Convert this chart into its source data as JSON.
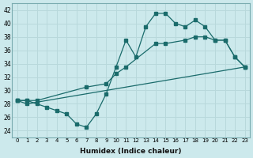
{
  "xlabel": "Humidex (Indice chaleur)",
  "bg_color": "#cce9ec",
  "line_color": "#1a6b6b",
  "grid_color": "#b8d8db",
  "xlim": [
    -0.5,
    23.5
  ],
  "ylim": [
    23,
    43
  ],
  "yticks": [
    24,
    26,
    28,
    30,
    32,
    34,
    36,
    38,
    40,
    42
  ],
  "xticks": [
    0,
    1,
    2,
    3,
    4,
    5,
    6,
    7,
    8,
    9,
    10,
    11,
    12,
    13,
    14,
    15,
    16,
    17,
    18,
    19,
    20,
    21,
    22,
    23
  ],
  "line1_x": [
    0,
    1,
    23
  ],
  "line1_y": [
    28.5,
    28.0,
    33.5
  ],
  "line2_x": [
    0,
    1,
    2,
    7,
    9,
    10,
    11,
    14,
    15,
    17,
    18,
    19,
    20,
    21,
    22,
    23
  ],
  "line2_y": [
    28.5,
    28.5,
    28.5,
    30.5,
    31.0,
    32.5,
    33.5,
    37.0,
    37.0,
    37.5,
    38.0,
    38.0,
    37.5,
    37.5,
    35.0,
    33.5
  ],
  "line3_x": [
    0,
    1,
    2,
    3,
    4,
    5,
    6,
    7,
    8,
    9,
    10,
    11,
    12,
    13,
    14,
    15,
    16,
    17,
    18,
    19,
    20,
    21,
    22,
    23
  ],
  "line3_y": [
    28.5,
    28.5,
    28.0,
    27.5,
    27.0,
    26.5,
    25.0,
    24.5,
    26.5,
    29.5,
    33.5,
    37.5,
    35.0,
    39.5,
    41.5,
    41.5,
    40.0,
    39.5,
    40.5,
    39.5,
    37.5,
    37.5,
    35.0,
    33.5
  ]
}
